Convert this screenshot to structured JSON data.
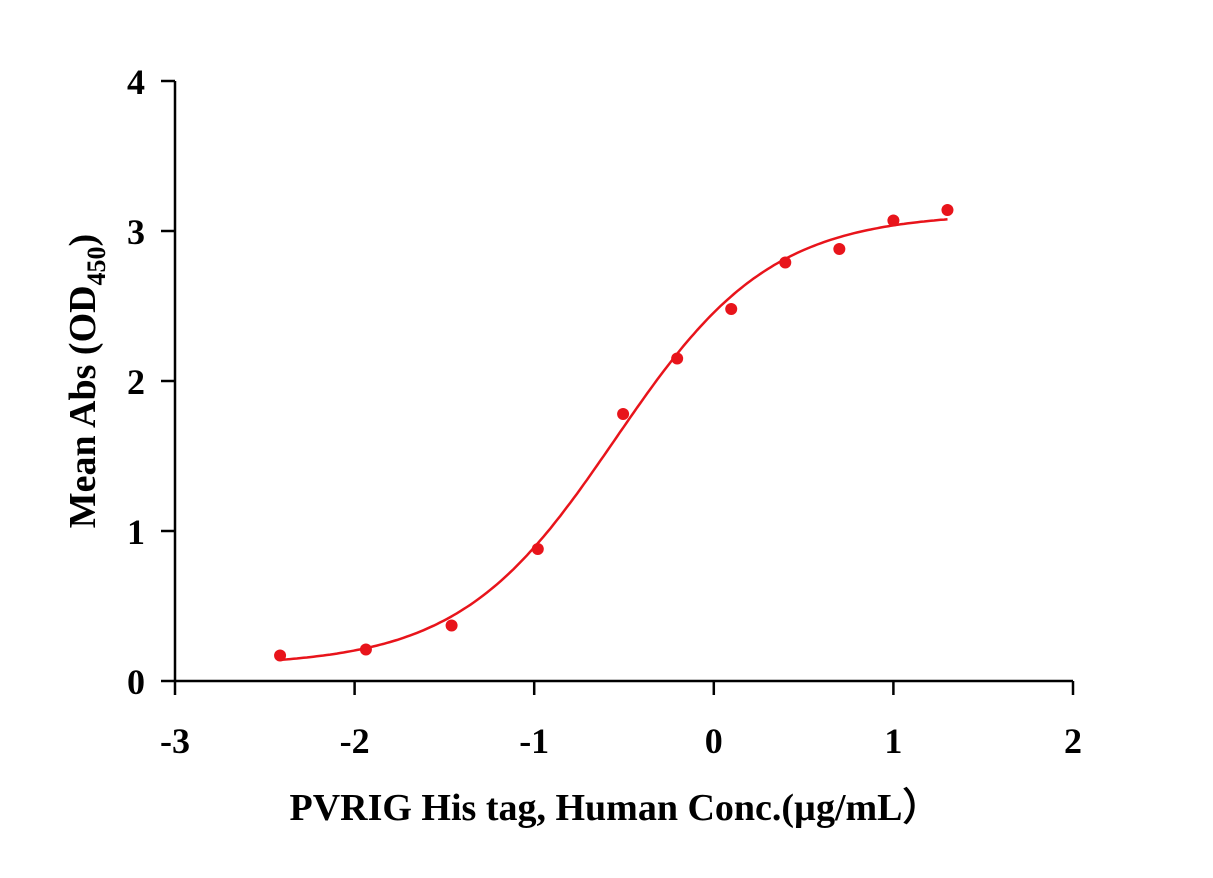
{
  "chart_data": {
    "type": "scatter",
    "title": "",
    "xlabel": "PVRIG His tag, Human  Conc.(µg/mL）",
    "ylabel_main": "Mean Abs (OD",
    "ylabel_sub": "450",
    "ylabel_close": ")",
    "xlim": [
      -3,
      2
    ],
    "ylim": [
      0,
      4
    ],
    "xticks": [
      -3,
      -2,
      -1,
      0,
      1,
      2
    ],
    "yticks": [
      0,
      1,
      2,
      3,
      4
    ],
    "grid": false,
    "color": "#e8141b",
    "series": [
      {
        "name": "PVRIG His tag, Human",
        "x": [
          -2.415,
          -1.937,
          -1.46,
          -0.98,
          -0.505,
          -0.204,
          0.097,
          0.398,
          0.699,
          1.0,
          1.301
        ],
        "y": [
          0.17,
          0.21,
          0.37,
          0.88,
          1.78,
          2.15,
          2.48,
          2.79,
          2.88,
          3.07,
          3.14
        ]
      }
    ],
    "fit": {
      "model": "4PL",
      "bottom": 0.1,
      "top": 3.12,
      "logEC50": -0.55,
      "hill": 1.0,
      "xrange": [
        -2.415,
        1.301
      ]
    }
  }
}
